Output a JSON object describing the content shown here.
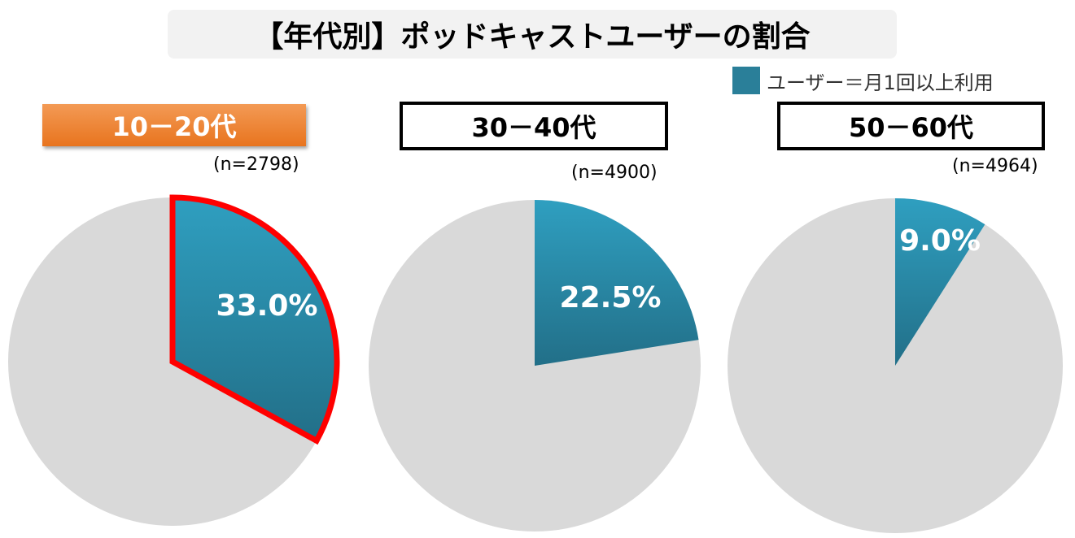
{
  "title": "【年代別】ポッドキャストユーザーの割合",
  "legend": {
    "label": "ユーザー＝月1回以上利用",
    "color": "#2a7f99"
  },
  "colors": {
    "user": "#2a7f99",
    "rest": "#d9d9d9",
    "highlight_border": "#ff0000",
    "highlight_label": "#ee7d2c"
  },
  "chart_data": [
    {
      "type": "pie",
      "title": "10－20代",
      "sample": "(n=2798)",
      "highlighted": true,
      "slices": [
        {
          "name": "ユーザー＝月1回以上利用",
          "value": 33.0,
          "label": "33.0%"
        },
        {
          "value": 67.0
        }
      ]
    },
    {
      "type": "pie",
      "title": "30－40代",
      "sample": "(n=4900)",
      "highlighted": false,
      "slices": [
        {
          "name": "ユーザー＝月1回以上利用",
          "value": 22.5,
          "label": "22.5%"
        },
        {
          "value": 77.5
        }
      ]
    },
    {
      "type": "pie",
      "title": "50－60代",
      "sample": "(n=4964)",
      "highlighted": false,
      "slices": [
        {
          "name": "ユーザー＝月1回以上利用",
          "value": 9.0,
          "label": "9.0%"
        },
        {
          "value": 91.0
        }
      ]
    }
  ]
}
